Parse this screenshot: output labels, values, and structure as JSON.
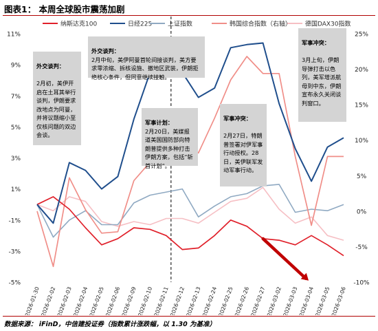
{
  "title": "图表1：  本周全球股市震荡加剧",
  "source": "数据来源：  iFinD，中信建投证券（指数累计涨跌幅，以 1.30 为基准）",
  "annotations": [
    {
      "head": "外交谈判：",
      "body": "2月初，美伊开启在土耳其举行谈判，伊朗要求改地点为阿曼，并将议题缩小至仅核问题的双边会谈。"
    },
    {
      "head": "外交谈判：",
      "body": "2月中旬，美伊阿曼首轮间接谈判，美方要求零浓缩、拆核设施、撤地区武装，伊朗拒绝核心条件，但同意继续接触。"
    },
    {
      "head": "军事计划：",
      "body": "2月20日，美媒报道美国国防部向特朗普提供多种打击伊朗方案，包括“斩首计划”。"
    },
    {
      "head": "军事冲突：",
      "body": "2月27日，特朗普签署对伊军事行动授权。28日，美伊联军发动军事行动。"
    },
    {
      "head": "军事冲突：",
      "body": "3月上旬，伊朗导弹打击以色列，美军增派航母到中东，伊朗宣布永久关闭谈判窗口。"
    }
  ],
  "chart_data": {
    "type": "line",
    "x": [
      "2026-01-30",
      "2026-02-02",
      "2026-02-03",
      "2026-02-04",
      "2026-02-05",
      "2026-02-06",
      "2026-02-09",
      "2026-02-10",
      "2026-02-11",
      "2026-02-12",
      "2026-02-13",
      "2026-02-24",
      "2026-02-25",
      "2026-02-26",
      "2026-02-27",
      "2026-03-02",
      "2026-03-03",
      "2026-03-04",
      "2026-03-05",
      "2026-03-06"
    ],
    "x_tick_labels": [
      "2026-01-30",
      "2026-02-02",
      "2026-02-03",
      "2026-02-04",
      "2026-02-05",
      "2026-02-06",
      "2026-02-09",
      "2026-02-10",
      "2026-02-11",
      "2026-02-12",
      "2026-02-13",
      "2026-02-24",
      "2026-02-25",
      "2026-02-26",
      "2026-02-27",
      "2026-03-02",
      "2026-03-03",
      "2026-03-04",
      "2026-03-05",
      "2026-03-06"
    ],
    "y_left": {
      "ticks": [
        "11%",
        "9%",
        "7%",
        "5%",
        "3%",
        "1%",
        "-1%",
        "-3%",
        "-5%"
      ],
      "min": -5,
      "max": 11
    },
    "y_right": {
      "ticks": [
        "25%",
        "20%",
        "15%",
        "10%",
        "5%",
        "0%",
        "-5%",
        "-10%"
      ],
      "min": -10,
      "max": 25
    },
    "legend_position": "top",
    "grid": false,
    "series": [
      {
        "name": "纳斯达克100",
        "axis": "left",
        "color": "#e0202a",
        "width": 1.7,
        "values": [
          0.0,
          0.5,
          -0.3,
          -1.5,
          -2.6,
          -2.2,
          -1.5,
          -1.6,
          -2.0,
          -2.9,
          -2.8,
          -2.0,
          -1.0,
          -1.4,
          -2.2,
          -2.3,
          -2.6,
          -2.0,
          -2.6,
          -3.3
        ]
      },
      {
        "name": "日经225",
        "axis": "left",
        "color": "#1f4e8c",
        "width": 2.0,
        "values": [
          0.0,
          -1.2,
          2.7,
          2.2,
          1.0,
          1.8,
          5.5,
          8.5,
          8.5,
          8.5,
          6.9,
          7.5,
          10.1,
          10.3,
          10.4,
          6.5,
          3.6,
          1.5,
          3.7,
          4.3
        ]
      },
      {
        "name": "上证指数",
        "axis": "left",
        "color": "#8fa9c2",
        "width": 1.6,
        "values": [
          0.0,
          -2.1,
          -1.0,
          -0.4,
          -1.3,
          -1.3,
          0.1,
          0.6,
          0.8,
          1.0,
          -0.8,
          -0.1,
          0.5,
          0.7,
          1.2,
          1.3,
          -0.5,
          -0.3,
          -0.4,
          0.0
        ]
      },
      {
        "name": "韩国综合指数（右轴）",
        "axis": "right",
        "color": "#f08e88",
        "width": 1.7,
        "values": [
          0.0,
          -7.8,
          4.7,
          0.2,
          -3.1,
          -2.9,
          4.3,
          6.9,
          7.2,
          10.9,
          8.2,
          13.1,
          18.5,
          21.8,
          19.4,
          19.4,
          7.7,
          -2.0,
          7.7,
          7.7
        ]
      },
      {
        "name": "德国DAX30指数",
        "axis": "left",
        "color": "#f6bfc4",
        "width": 1.6,
        "values": [
          0.0,
          -0.4,
          0.5,
          0.2,
          -1.1,
          -1.4,
          -1.1,
          -1.3,
          -0.9,
          -0.9,
          -1.2,
          -0.5,
          0.2,
          0.4,
          1.1,
          -0.3,
          -1.2,
          -0.8,
          -2.0,
          -2.3
        ]
      }
    ],
    "highlight_arrow": {
      "color": "#c00000",
      "from": {
        "x": "2026-02-27",
        "series": "纳斯达克100"
      },
      "to": {
        "x": "2026-03-04",
        "y": -4.9
      }
    }
  }
}
